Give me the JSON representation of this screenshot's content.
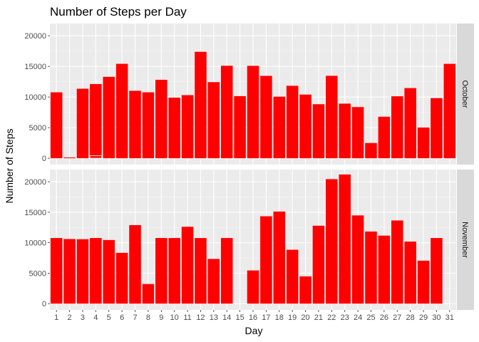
{
  "chart_data": {
    "type": "bar",
    "title": "Number of Steps per Day",
    "xlabel": "Day",
    "ylabel": "Number of Steps",
    "ylim": [
      0,
      22000
    ],
    "yticks": [
      0,
      5000,
      10000,
      15000,
      20000
    ],
    "ytick_labels": [
      "0",
      "5000",
      "10000",
      "15000",
      "20000"
    ],
    "grid": true,
    "bar_color": "#ff0000",
    "panel_bg": "#ebebeb",
    "strip_bg": "#d9d9d9",
    "categories": [
      "1",
      "2",
      "3",
      "4",
      "5",
      "6",
      "7",
      "8",
      "9",
      "10",
      "11",
      "12",
      "13",
      "14",
      "15",
      "16",
      "17",
      "18",
      "19",
      "20",
      "21",
      "22",
      "23",
      "24",
      "25",
      "26",
      "27",
      "28",
      "29",
      "30",
      "31"
    ],
    "panels": [
      {
        "name": "October",
        "values": [
          10766,
          126,
          11352,
          12116,
          13294,
          15420,
          11015,
          10766,
          12811,
          9900,
          10304,
          17382,
          12426,
          15098,
          10139,
          15084,
          13452,
          10056,
          11829,
          10395,
          8821,
          13460,
          8918,
          8355,
          2492,
          6778,
          10119,
          11458,
          5018,
          9819,
          15414
        ],
        "overlay_values": [
          null,
          null,
          null,
          400,
          null,
          null,
          null,
          null,
          null,
          null,
          null,
          null,
          null,
          null,
          null,
          null,
          null,
          null,
          null,
          null,
          null,
          null,
          null,
          null,
          null,
          null,
          null,
          null,
          null,
          null,
          null
        ]
      },
      {
        "name": "November",
        "values": [
          10766,
          10600,
          10571,
          10766,
          10439,
          8334,
          12883,
          3219,
          10766,
          10766,
          12608,
          10765,
          7336,
          10766,
          null,
          5441,
          14339,
          15110,
          8841,
          4472,
          12787,
          20427,
          21194,
          14478,
          11834,
          11162,
          13646,
          10183,
          7047,
          10766,
          null
        ]
      }
    ]
  }
}
